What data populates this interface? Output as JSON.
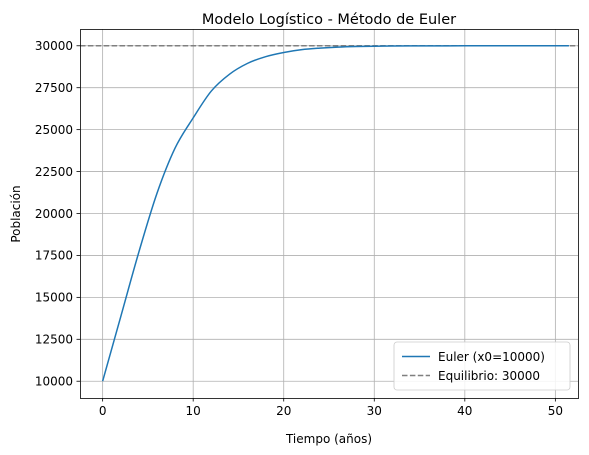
{
  "chart_data": {
    "type": "line",
    "title": "Modelo Logístico - Método de Euler",
    "xlabel": "Tiempo (años)",
    "ylabel": "Población",
    "xlim": [
      -2.5,
      52.5
    ],
    "ylim": [
      9000,
      31000
    ],
    "xticks": [
      0,
      10,
      20,
      30,
      40,
      50
    ],
    "yticks": [
      10000,
      12500,
      15000,
      17500,
      20000,
      22500,
      25000,
      27500,
      30000
    ],
    "grid": true,
    "legend_position": "lower-right",
    "series": [
      {
        "name": "Euler (x0=10000)",
        "style": "solid",
        "color": "#1f77b4",
        "x": [
          0,
          2,
          4,
          6,
          8,
          10,
          12,
          14,
          16,
          18,
          20,
          22,
          24,
          26,
          28,
          30,
          32,
          34,
          36,
          38,
          40,
          42,
          44,
          46,
          48,
          50,
          51.5
        ],
        "y": [
          10000,
          13850,
          17700,
          21200,
          23900,
          25700,
          27300,
          28300,
          28950,
          29350,
          29600,
          29770,
          29860,
          29920,
          29955,
          29975,
          29985,
          29991,
          29995,
          29997,
          29998,
          29999,
          30000,
          30000,
          30000,
          30000,
          30000
        ]
      },
      {
        "name": "Equilibrio: 30000",
        "style": "dashed",
        "color": "#7f7f7f",
        "x": [
          -2.5,
          52.5
        ],
        "y": [
          30000,
          30000
        ]
      }
    ]
  }
}
